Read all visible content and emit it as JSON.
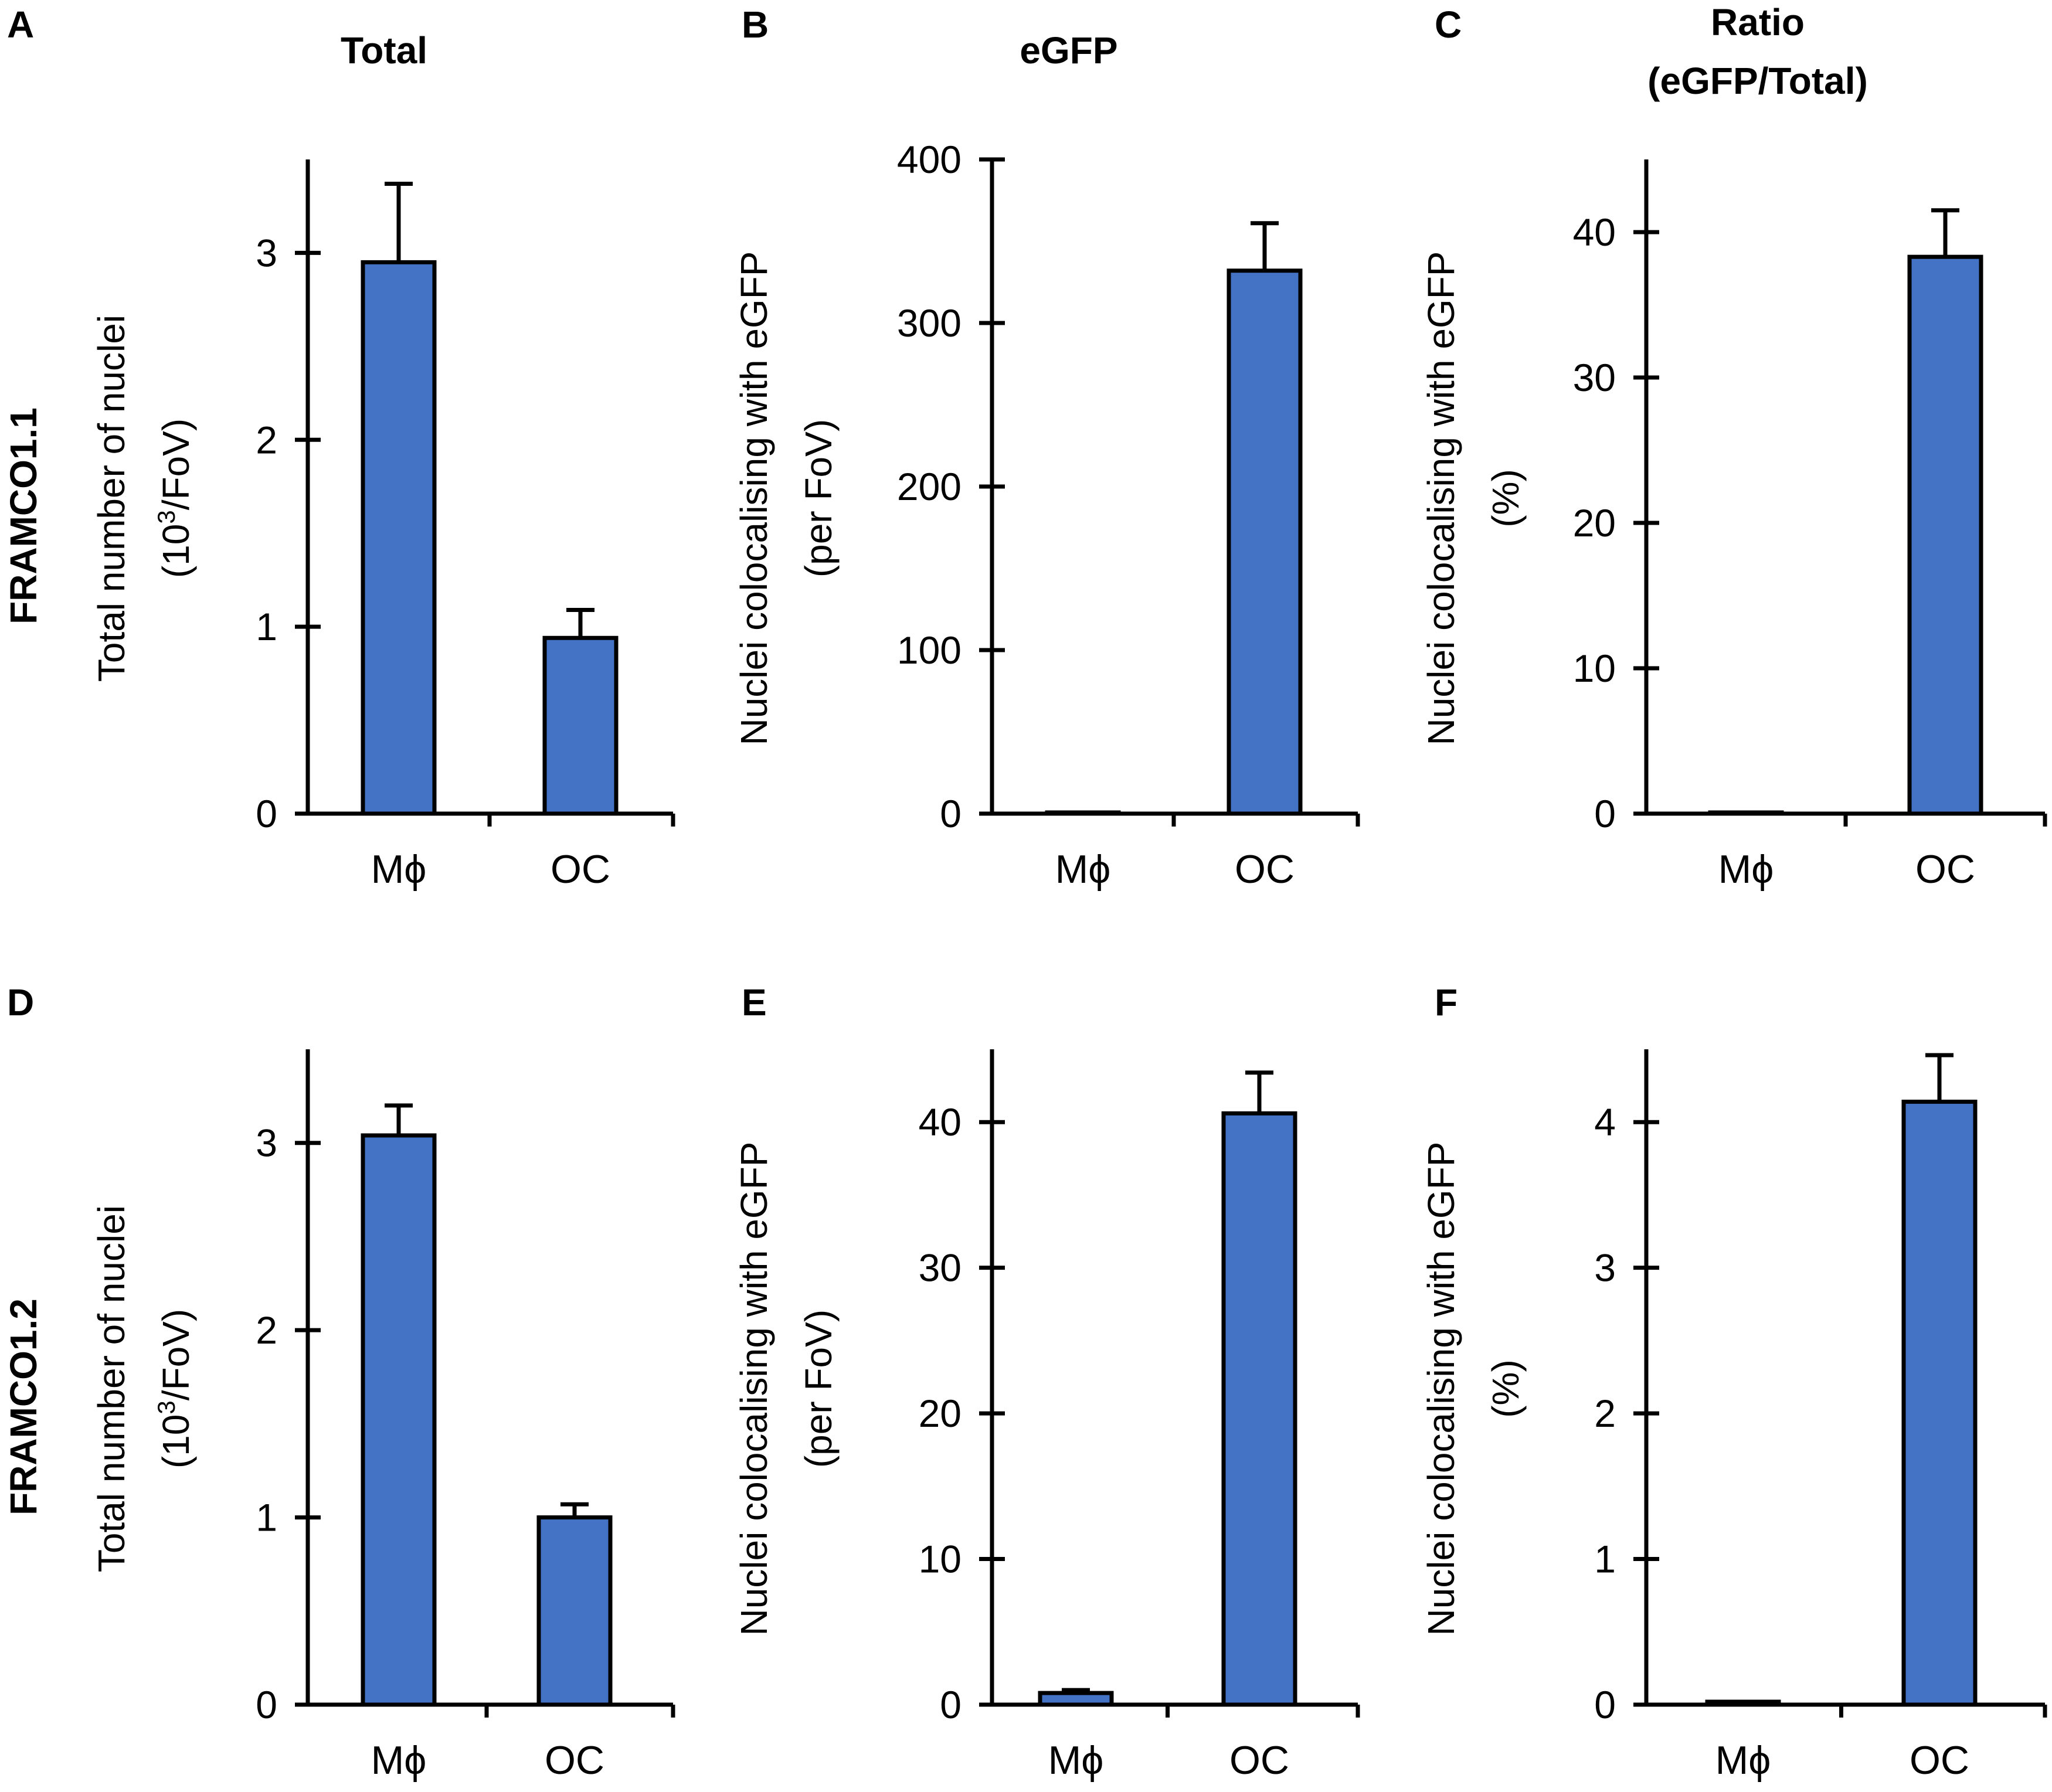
{
  "figure": {
    "column_titles": [
      "Total",
      "eGFP",
      "Ratio (eGFP/Total)"
    ],
    "column_title_lines": [
      [
        "Total"
      ],
      [
        "eGFP"
      ],
      [
        "Ratio",
        "(eGFP/Total)"
      ]
    ],
    "row_labels": [
      "FRAMCO1.1",
      "FRAMCO1.2"
    ],
    "colors": {
      "bar_fill": "#4472C4",
      "stroke": "#000000",
      "background": "#FFFFFF"
    }
  },
  "chart_data": [
    {
      "id": "A",
      "panel_letter": "A",
      "type": "bar",
      "categories": [
        "Mϕ",
        "OC"
      ],
      "values": [
        2.95,
        0.94
      ],
      "errors": [
        0.42,
        0.15
      ],
      "ylim": [
        0,
        3.5
      ],
      "yticks": [
        0,
        1,
        2,
        3
      ],
      "ylabel_lines": [
        "Total number of nuclei",
        "(10^3/FoV)"
      ],
      "ylabel_line2_parts": [
        "(10",
        "3",
        "/FoV)"
      ]
    },
    {
      "id": "B",
      "panel_letter": "B",
      "type": "bar",
      "categories": [
        "Mϕ",
        "OC"
      ],
      "values": [
        0.6,
        332
      ],
      "errors": [
        0.3,
        29
      ],
      "ylim": [
        0,
        400
      ],
      "yticks": [
        0,
        100,
        200,
        300,
        400
      ],
      "ylabel_lines": [
        "Nuclei colocalising with eGFP",
        "(per FoV)"
      ]
    },
    {
      "id": "C",
      "panel_letter": "C",
      "type": "bar",
      "categories": [
        "Mϕ",
        "OC"
      ],
      "values": [
        0.02,
        38.3
      ],
      "errors": [
        0.01,
        3.2
      ],
      "ylim": [
        0,
        45
      ],
      "yticks": [
        0,
        10,
        20,
        30,
        40
      ],
      "ylabel_lines": [
        "Nuclei colocalising with eGFP",
        "(%)"
      ]
    },
    {
      "id": "D",
      "panel_letter": "D",
      "type": "bar",
      "categories": [
        "Mϕ",
        "OC"
      ],
      "values": [
        3.04,
        1.0
      ],
      "errors": [
        0.16,
        0.07
      ],
      "ylim": [
        0,
        3.5
      ],
      "yticks": [
        0,
        1,
        2,
        3
      ],
      "ylabel_lines": [
        "Total number of nuclei",
        "(10^3/FoV)"
      ],
      "ylabel_line2_parts": [
        "(10",
        "3",
        "/FoV)"
      ]
    },
    {
      "id": "E",
      "panel_letter": "E",
      "type": "bar",
      "categories": [
        "Mϕ",
        "OC"
      ],
      "values": [
        0.8,
        40.6
      ],
      "errors": [
        0.2,
        2.8
      ],
      "ylim": [
        0,
        45
      ],
      "yticks": [
        0,
        10,
        20,
        30,
        40
      ],
      "ylabel_lines": [
        "Nuclei colocalising with eGFP",
        "(per FoV)"
      ]
    },
    {
      "id": "F",
      "panel_letter": "F",
      "type": "bar",
      "categories": [
        "Mϕ",
        "OC"
      ],
      "values": [
        0.02,
        4.14
      ],
      "errors": [
        0.005,
        0.32
      ],
      "ylim": [
        0,
        4.5
      ],
      "yticks": [
        0,
        1,
        2,
        3,
        4
      ],
      "ylabel_lines": [
        "Nuclei colocalising with eGFP",
        "(%)"
      ]
    }
  ]
}
